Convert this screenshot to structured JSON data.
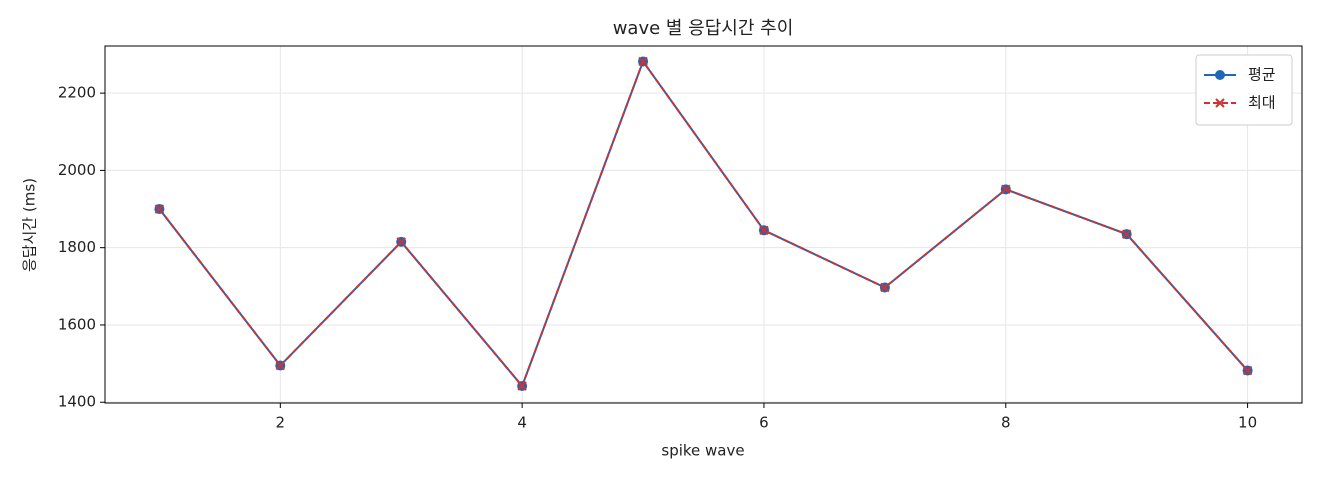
{
  "chart_data": {
    "type": "line",
    "title": "wave 별 응답시간 추이",
    "x_label": "spike wave",
    "y_label": "응답시간 (ms)",
    "x": [
      1,
      2,
      3,
      4,
      5,
      6,
      7,
      8,
      9,
      10
    ],
    "series": [
      {
        "name": "평균",
        "color": "#1f66b8",
        "marker": "o",
        "values": [
          1900,
          1495,
          1815,
          1442,
          2282,
          1845,
          1697,
          1951,
          1835,
          1482
        ]
      },
      {
        "name": "최대",
        "color": "#cc3333",
        "marker": "x",
        "dash": true,
        "values": [
          1900,
          1495,
          1815,
          1442,
          2282,
          1845,
          1697,
          1951,
          1835,
          1482
        ]
      }
    ],
    "xlim": [
      0.55,
      10.45
    ],
    "ylim": [
      1398,
      2322
    ],
    "xticks": [
      2,
      4,
      6,
      8,
      10
    ],
    "yticks": [
      1400,
      1600,
      1800,
      2000,
      2200
    ],
    "grid": true,
    "legend": "upper right"
  }
}
